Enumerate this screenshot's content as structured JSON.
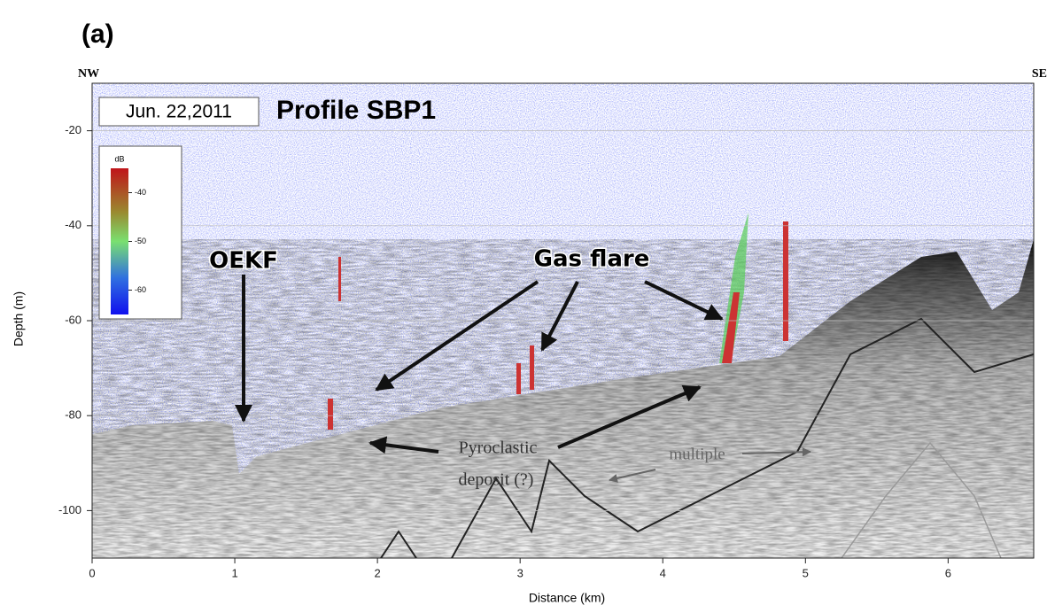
{
  "panel_label": "(a)",
  "chart_data": {
    "type": "profile",
    "title": "Profile SBP1",
    "date": "Jun. 22,2011",
    "left_label": "NW",
    "right_label": "SE",
    "x_label": "Distance (km)",
    "y_label": "Depth (m)",
    "xlim": [
      0,
      6.6
    ],
    "ylim": [
      -110,
      -10
    ],
    "xticks": [
      0,
      1,
      2,
      3,
      4,
      5,
      6
    ],
    "yticks": [
      -20,
      -40,
      -60,
      -80,
      -100
    ],
    "grid": true,
    "colorbar": {
      "label": "dB",
      "lim": [
        -35,
        -65
      ],
      "ticks": [
        -40,
        -50,
        -60
      ]
    },
    "annotations": [
      "OEKF",
      "Gas flare",
      "Pyroclastic",
      "deposit (?)",
      "multiple"
    ]
  }
}
